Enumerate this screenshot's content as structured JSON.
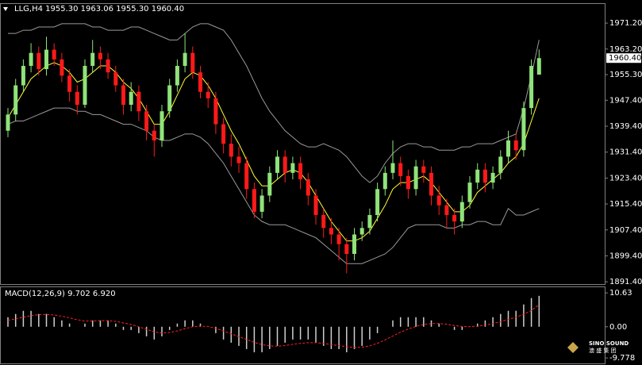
{
  "chart_data": [
    {
      "type": "candlestick",
      "title": "LLG,H4  1955.30 1963.06 1955.30 1960.40",
      "ylim": [
        1890.7,
        1977.1
      ],
      "yticks": [
        {
          "value": 1971.2,
          "label": "1971.20"
        },
        {
          "value": 1963.2,
          "label": "1963.20"
        },
        {
          "value": 1955.3,
          "label": "1955.30"
        },
        {
          "value": 1947.4,
          "label": "1947.40"
        },
        {
          "value": 1939.4,
          "label": "1939.40"
        },
        {
          "value": 1931.4,
          "label": "1931.40"
        },
        {
          "value": 1923.4,
          "label": "1923.40"
        },
        {
          "value": 1915.4,
          "label": "1915.40"
        },
        {
          "value": 1907.4,
          "label": "1907.40"
        },
        {
          "value": 1899.4,
          "label": "1899.40"
        },
        {
          "value": 1891.4,
          "label": "1891.40"
        }
      ],
      "price_label": {
        "value": 1960.4,
        "label": "1960.40"
      },
      "up_color": "#8fe37a",
      "down_color": "#ff1a1a",
      "candles": [
        [
          1938,
          1945,
          1936,
          1943
        ],
        [
          1943,
          1954,
          1941,
          1952
        ],
        [
          1952,
          1960,
          1950,
          1958
        ],
        [
          1958,
          1965,
          1956,
          1962
        ],
        [
          1962,
          1964,
          1955,
          1957
        ],
        [
          1957,
          1967,
          1955,
          1963
        ],
        [
          1963,
          1965,
          1958,
          1960
        ],
        [
          1960,
          1962,
          1953,
          1955
        ],
        [
          1955,
          1957,
          1947,
          1950
        ],
        [
          1950,
          1952,
          1943,
          1946
        ],
        [
          1946,
          1960,
          1945,
          1958
        ],
        [
          1958,
          1966,
          1956,
          1962
        ],
        [
          1962,
          1964,
          1957,
          1960
        ],
        [
          1960,
          1962,
          1954,
          1956
        ],
        [
          1956,
          1958,
          1950,
          1952
        ],
        [
          1952,
          1954,
          1943,
          1946
        ],
        [
          1946,
          1953,
          1944,
          1950
        ],
        [
          1950,
          1952,
          1941,
          1944
        ],
        [
          1944,
          1946,
          1935,
          1938
        ],
        [
          1938,
          1940,
          1930,
          1935
        ],
        [
          1935,
          1946,
          1933,
          1944
        ],
        [
          1944,
          1954,
          1942,
          1952
        ],
        [
          1952,
          1960,
          1950,
          1958
        ],
        [
          1958,
          1968,
          1956,
          1962
        ],
        [
          1962,
          1964,
          1954,
          1956
        ],
        [
          1956,
          1958,
          1948,
          1950
        ],
        [
          1950,
          1953,
          1945,
          1948
        ],
        [
          1948,
          1950,
          1937,
          1940
        ],
        [
          1940,
          1942,
          1931,
          1934
        ],
        [
          1934,
          1937,
          1927,
          1930
        ],
        [
          1930,
          1933,
          1925,
          1928
        ],
        [
          1928,
          1930,
          1917,
          1920
        ],
        [
          1920,
          1922,
          1911,
          1913
        ],
        [
          1913,
          1920,
          1911,
          1918
        ],
        [
          1918,
          1927,
          1916,
          1925
        ],
        [
          1925,
          1932,
          1923,
          1930
        ],
        [
          1930,
          1932,
          1922,
          1925
        ],
        [
          1925,
          1930,
          1923,
          1928
        ],
        [
          1928,
          1930,
          1920,
          1923
        ],
        [
          1923,
          1925,
          1915,
          1918
        ],
        [
          1918,
          1920,
          1909,
          1912
        ],
        [
          1912,
          1914,
          1905,
          1908
        ],
        [
          1908,
          1911,
          1903,
          1906
        ],
        [
          1906,
          1908,
          1898,
          1903
        ],
        [
          1903,
          1905,
          1894,
          1900
        ],
        [
          1900,
          1908,
          1898,
          1906
        ],
        [
          1906,
          1910,
          1904,
          1908
        ],
        [
          1908,
          1914,
          1906,
          1912
        ],
        [
          1912,
          1922,
          1910,
          1920
        ],
        [
          1920,
          1927,
          1918,
          1925
        ],
        [
          1925,
          1935,
          1923,
          1928
        ],
        [
          1928,
          1930,
          1921,
          1924
        ],
        [
          1924,
          1926,
          1917,
          1920
        ],
        [
          1920,
          1929,
          1918,
          1927
        ],
        [
          1927,
          1929,
          1922,
          1925
        ],
        [
          1925,
          1927,
          1915,
          1918
        ],
        [
          1918,
          1921,
          1912,
          1915
        ],
        [
          1915,
          1917,
          1908,
          1912
        ],
        [
          1912,
          1914,
          1906,
          1910
        ],
        [
          1910,
          1918,
          1908,
          1916
        ],
        [
          1916,
          1924,
          1914,
          1922
        ],
        [
          1922,
          1928,
          1920,
          1926
        ],
        [
          1926,
          1928,
          1919,
          1922
        ],
        [
          1922,
          1927,
          1920,
          1925
        ],
        [
          1925,
          1932,
          1923,
          1930
        ],
        [
          1930,
          1938,
          1928,
          1935
        ],
        [
          1935,
          1937,
          1929,
          1932
        ],
        [
          1932,
          1947,
          1930,
          1945
        ],
        [
          1945,
          1960,
          1943,
          1958
        ],
        [
          1955.3,
          1963.06,
          1955.3,
          1960.4
        ]
      ],
      "series": [
        {
          "color": "#9a9a9a",
          "values": [
            1968,
            1968,
            1969,
            1969,
            1970,
            1970,
            1970,
            1971,
            1971,
            1971,
            1971,
            1970,
            1970,
            1969,
            1969,
            1969,
            1970,
            1970,
            1969,
            1968,
            1967,
            1966,
            1966,
            1968,
            1970,
            1971,
            1971,
            1970,
            1969,
            1966,
            1962,
            1958,
            1953,
            1948,
            1944,
            1941,
            1938,
            1936,
            1934,
            1933,
            1933,
            1934,
            1933,
            1932,
            1930,
            1927,
            1924,
            1922,
            1924,
            1928,
            1931,
            1933,
            1934,
            1934,
            1933,
            1933,
            1932,
            1932,
            1932,
            1933,
            1933,
            1934,
            1934,
            1934,
            1935,
            1936,
            1937,
            1945,
            1955,
            1966
          ]
        },
        {
          "color": "#9a9a9a",
          "values": [
            1940,
            1941,
            1941,
            1942,
            1943,
            1944,
            1945,
            1945,
            1945,
            1944,
            1944,
            1943,
            1943,
            1942,
            1941,
            1940,
            1940,
            1939,
            1938,
            1936,
            1935,
            1935,
            1936,
            1937,
            1937,
            1936,
            1934,
            1931,
            1928,
            1924,
            1920,
            1916,
            1912,
            1910,
            1909,
            1909,
            1909,
            1908,
            1907,
            1906,
            1905,
            1903,
            1901,
            1899,
            1897,
            1897,
            1897,
            1898,
            1899,
            1900,
            1902,
            1905,
            1908,
            1909,
            1909,
            1909,
            1909,
            1908,
            1908,
            1909,
            1909,
            1910,
            1910,
            1909,
            1909,
            1914,
            1912,
            1912,
            1913,
            1914
          ]
        },
        {
          "color": "#ffff33",
          "values": [
            1942,
            1946,
            1950,
            1954,
            1956,
            1958,
            1959,
            1958,
            1956,
            1953,
            1954,
            1956,
            1958,
            1958,
            1956,
            1953,
            1951,
            1948,
            1944,
            1940,
            1940,
            1944,
            1949,
            1954,
            1956,
            1955,
            1952,
            1948,
            1943,
            1938,
            1934,
            1929,
            1924,
            1921,
            1921,
            1923,
            1925,
            1926,
            1925,
            1922,
            1918,
            1914,
            1910,
            1907,
            1904,
            1904,
            1905,
            1907,
            1911,
            1915,
            1920,
            1922,
            1922,
            1923,
            1924,
            1922,
            1919,
            1916,
            1913,
            1913,
            1915,
            1919,
            1921,
            1923,
            1925,
            1928,
            1930,
            1934,
            1941,
            1948
          ]
        }
      ],
      "watermark": [
        "SINO SOUND",
        "澳 盛 集 团"
      ]
    },
    {
      "type": "macd",
      "title": "MACD(12,26,9) 9.702 6.920",
      "ylim": [
        -11.5,
        12.4
      ],
      "yticks": [
        10.63,
        {
          "value": 0,
          "label": "0.00"
        },
        -9.778
      ],
      "series": [
        {
          "color": "#cfcfcf",
          "values": [
            3,
            4,
            5,
            5,
            4,
            4,
            3,
            2,
            1,
            0,
            1,
            2,
            2,
            2,
            1,
            -1,
            -1,
            -2,
            -3,
            -4,
            -3,
            -1,
            1,
            2,
            2,
            1,
            0,
            -2,
            -4,
            -5,
            -6,
            -7,
            -8,
            -8,
            -7,
            -6,
            -5,
            -4,
            -4,
            -4,
            -5,
            -6,
            -7,
            -7,
            -8,
            -7,
            -6,
            -4,
            -2,
            0,
            2,
            3,
            3,
            3,
            3,
            2,
            1,
            0,
            -1,
            -1,
            0,
            1,
            2,
            3,
            4,
            5,
            5,
            7,
            9,
            9.702
          ]
        },
        {
          "color": "#ff2020",
          "values": [
            2,
            2.5,
            3,
            3.5,
            3.8,
            3.9,
            3.7,
            3.3,
            2.8,
            2.2,
            1.8,
            1.8,
            1.9,
            1.9,
            1.7,
            1.2,
            0.7,
            0,
            -0.8,
            -1.6,
            -2,
            -1.8,
            -1.3,
            -0.6,
            0,
            0.2,
            0.1,
            -0.5,
            -1.3,
            -2.2,
            -3.1,
            -4,
            -4.9,
            -5.6,
            -6,
            -6.1,
            -5.9,
            -5.5,
            -5.2,
            -5,
            -5,
            -5.2,
            -5.6,
            -5.9,
            -6.3,
            -6.5,
            -6.4,
            -6,
            -5.2,
            -4.1,
            -2.9,
            -1.7,
            -0.7,
            0.1,
            0.7,
            1,
            1,
            0.8,
            0.4,
            0.1,
            0,
            0.2,
            0.5,
            1,
            1.6,
            2.3,
            3,
            3.9,
            5.1,
            6.92
          ]
        }
      ]
    }
  ]
}
